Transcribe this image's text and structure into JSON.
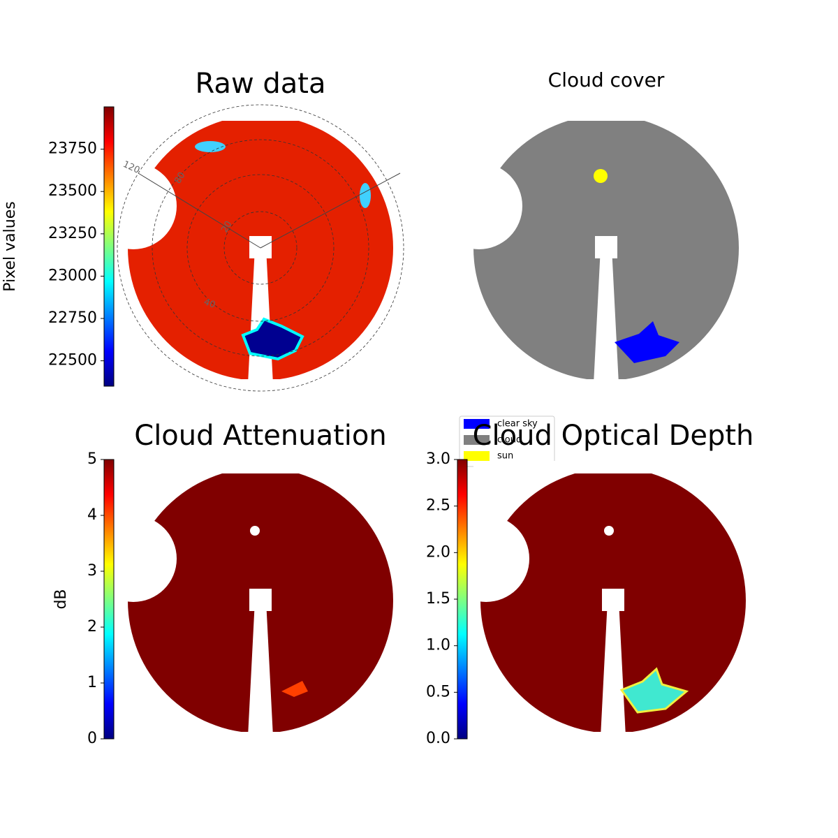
{
  "chart_data": [
    {
      "type": "image",
      "title": "Raw data",
      "colorbar": {
        "label": "Pixel values",
        "lim": [
          22350,
          24000
        ],
        "ticks": [
          22500,
          22750,
          23000,
          23250,
          23500,
          23750
        ]
      },
      "annotations": [
        "120",
        "80",
        "20",
        "40"
      ]
    },
    {
      "type": "image",
      "title": "Cloud cover",
      "legend": {
        "entries": [
          {
            "name": "clear sky",
            "color": "#0000ff"
          },
          {
            "name": "cloud",
            "color": "#808080"
          },
          {
            "name": "sun",
            "color": "#ffff00"
          }
        ]
      }
    },
    {
      "type": "image",
      "title": "Cloud Attenuation",
      "colorbar": {
        "label": "dB",
        "lim": [
          0,
          5
        ],
        "ticks": [
          0,
          1,
          2,
          3,
          4,
          5
        ]
      }
    },
    {
      "type": "image",
      "title": "Cloud Optical Depth",
      "colorbar": {
        "lim": [
          0,
          3
        ],
        "ticks": [
          {
            "value": 0,
            "label": "0.0"
          },
          {
            "value": 0.5,
            "label": "0.5"
          },
          {
            "value": 1,
            "label": "1.0"
          },
          {
            "value": 1.5,
            "label": "1.5"
          },
          {
            "value": 2,
            "label": "2.0"
          },
          {
            "value": 2.5,
            "label": "2.5"
          },
          {
            "value": 3,
            "label": "3.0"
          }
        ]
      }
    }
  ]
}
